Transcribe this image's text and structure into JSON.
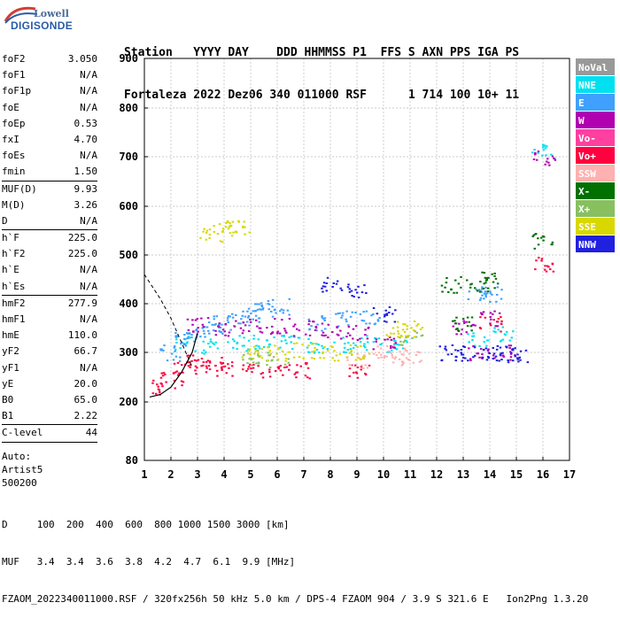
{
  "logo": {
    "top": "Lowell",
    "bottom": "DIGISONDE"
  },
  "header": {
    "line1": "Station   YYYY DAY    DDD HHMMSS P1  FFS S AXN PPS IGA PS",
    "line2": "Fortaleza 2022 Dez06 340 011000 RSF      1 714 100 10+ 11"
  },
  "params": {
    "group1": [
      {
        "label": "foF2",
        "value": "3.050"
      },
      {
        "label": "foF1",
        "value": "N/A"
      },
      {
        "label": "foF1p",
        "value": "N/A"
      },
      {
        "label": "foE",
        "value": "N/A"
      },
      {
        "label": "foEp",
        "value": "0.53"
      },
      {
        "label": "fxI",
        "value": "4.70"
      },
      {
        "label": "foEs",
        "value": "N/A"
      },
      {
        "label": "fmin",
        "value": "1.50"
      }
    ],
    "group2": [
      {
        "label": "MUF(D)",
        "value": "9.93"
      },
      {
        "label": "M(D)",
        "value": "3.26"
      },
      {
        "label": "D",
        "value": "N/A"
      }
    ],
    "group3": [
      {
        "label": "h`F",
        "value": "225.0"
      },
      {
        "label": "h`F2",
        "value": "225.0"
      },
      {
        "label": "h`E",
        "value": "N/A"
      },
      {
        "label": "h`Es",
        "value": "N/A"
      }
    ],
    "group4": [
      {
        "label": "hmF2",
        "value": "277.9"
      },
      {
        "label": "hmF1",
        "value": "N/A"
      },
      {
        "label": "hmE",
        "value": "110.0"
      },
      {
        "label": "yF2",
        "value": "66.7"
      },
      {
        "label": "yF1",
        "value": "N/A"
      },
      {
        "label": "yE",
        "value": "20.0"
      },
      {
        "label": "B0",
        "value": "65.0"
      },
      {
        "label": "B1",
        "value": "2.22"
      }
    ],
    "group5": [
      {
        "label": "C-level",
        "value": "44"
      }
    ],
    "auto_lines": [
      "Auto:",
      "Artist5",
      "500200"
    ]
  },
  "footer": {
    "line1": "D     100  200  400  600  800 1000 1500 3000 [km]",
    "line2": "MUF   3.4  3.4  3.6  3.8  4.2  4.7  6.1  9.9 [MHz]",
    "line3": "FZAOM_2022340011000.RSF / 320fx256h 50 kHz 5.0 km / DPS-4 FZAOM 904 / 3.9 S 321.6 E   Ion2Png 1.3.20"
  },
  "colors": {
    "line": "#000000",
    "grid": "#bbbbbb"
  },
  "chart_data": {
    "type": "scatter",
    "x_ticks": [
      "1",
      "2",
      "3",
      "4",
      "5",
      "6",
      "7",
      "8",
      "9",
      "10",
      "11",
      "12",
      "13",
      "14",
      "15",
      "16",
      "17"
    ],
    "y_ticks": [
      "80",
      "200",
      "300",
      "400",
      "500",
      "600",
      "700",
      "800",
      "900"
    ],
    "xlim": [
      1,
      17
    ],
    "ylim": [
      80,
      900
    ],
    "grid": true,
    "legend": [
      {
        "name": "NoVal",
        "color": "#999999"
      },
      {
        "name": "NNE",
        "color": "#00e0f0"
      },
      {
        "name": "E",
        "color": "#3fa0ff"
      },
      {
        "name": "W",
        "color": "#b000b0"
      },
      {
        "name": "Vo-",
        "color": "#ff40a0"
      },
      {
        "name": "Vo+",
        "color": "#ff0040"
      },
      {
        "name": "SSW",
        "color": "#ffb0b0"
      },
      {
        "name": "X-",
        "color": "#007000"
      },
      {
        "name": "X+",
        "color": "#88c060"
      },
      {
        "name": "SSE",
        "color": "#d8d800"
      },
      {
        "name": "NNW",
        "color": "#2020e0"
      }
    ],
    "legend_position": "right",
    "series": [
      {
        "name": "NNE",
        "color": "#00e0f0",
        "x": [
          2.5,
          3.5,
          4.5,
          5.5,
          6.5,
          7.5,
          8.5,
          9.5,
          10.5,
          13.5,
          14.5,
          16.0
        ],
        "y": [
          320,
          315,
          320,
          325,
          320,
          315,
          318,
          320,
          310,
          330,
          340,
          710
        ]
      },
      {
        "name": "E",
        "color": "#3fa0ff",
        "x": [
          2.0,
          2.5,
          3.0,
          3.5,
          4.0,
          4.5,
          5.0,
          5.5,
          6.0,
          7.5,
          8.5,
          9.5,
          13.5,
          14.0
        ],
        "y": [
          300,
          330,
          340,
          350,
          360,
          370,
          380,
          390,
          395,
          360,
          370,
          375,
          420,
          420
        ]
      },
      {
        "name": "W",
        "color": "#b000b0",
        "x": [
          3.0,
          4.0,
          5.0,
          6.0,
          7.0,
          8.0,
          9.0,
          10.0,
          13.0,
          13.5,
          14.0,
          14.5,
          16.0
        ],
        "y": [
          360,
          350,
          355,
          355,
          350,
          345,
          340,
          320,
          350,
          300,
          370,
          300,
          700
        ]
      },
      {
        "name": "Vo+",
        "color": "#ff0040",
        "x": [
          1.7,
          2.0,
          2.5,
          3.0,
          3.5,
          4.0,
          5.0,
          6.0,
          7.0,
          9.0,
          14.0,
          16.0
        ],
        "y": [
          230,
          250,
          270,
          280,
          275,
          270,
          265,
          265,
          265,
          260,
          360,
          480
        ]
      },
      {
        "name": "SSW",
        "color": "#ffb0b0",
        "x": [
          9.0,
          10.0,
          10.5,
          11.0
        ],
        "y": [
          285,
          300,
          290,
          295
        ]
      },
      {
        "name": "X-",
        "color": "#007000",
        "x": [
          12.5,
          13.0,
          13.5,
          14.0,
          16.0
        ],
        "y": [
          440,
          360,
          440,
          450,
          530
        ]
      },
      {
        "name": "X+",
        "color": "#88c060",
        "x": [
          5.0,
          6.0,
          11.0
        ],
        "y": [
          290,
          285,
          330
        ]
      },
      {
        "name": "SSE",
        "color": "#d8d800",
        "x": [
          3.5,
          4.0,
          4.5,
          5.0,
          6.0,
          7.0,
          8.0,
          9.0,
          10.5,
          11.0
        ],
        "y": [
          540,
          555,
          560,
          300,
          300,
          305,
          300,
          300,
          350,
          350
        ]
      },
      {
        "name": "NNW",
        "color": "#2020e0",
        "x": [
          8.0,
          9.0,
          10.0,
          12.5,
          13.0,
          14.0,
          14.5,
          15.0
        ],
        "y": [
          440,
          430,
          380,
          300,
          300,
          300,
          300,
          295
        ]
      }
    ],
    "curve": {
      "x": [
        1.2,
        1.6,
        2.0,
        2.4,
        2.8,
        3.0
      ],
      "y": [
        210,
        215,
        230,
        260,
        300,
        340
      ]
    },
    "curve2": {
      "x": [
        1.0,
        1.6,
        2.0,
        2.4,
        2.8
      ],
      "y": [
        460,
        410,
        370,
        320,
        270
      ]
    }
  }
}
